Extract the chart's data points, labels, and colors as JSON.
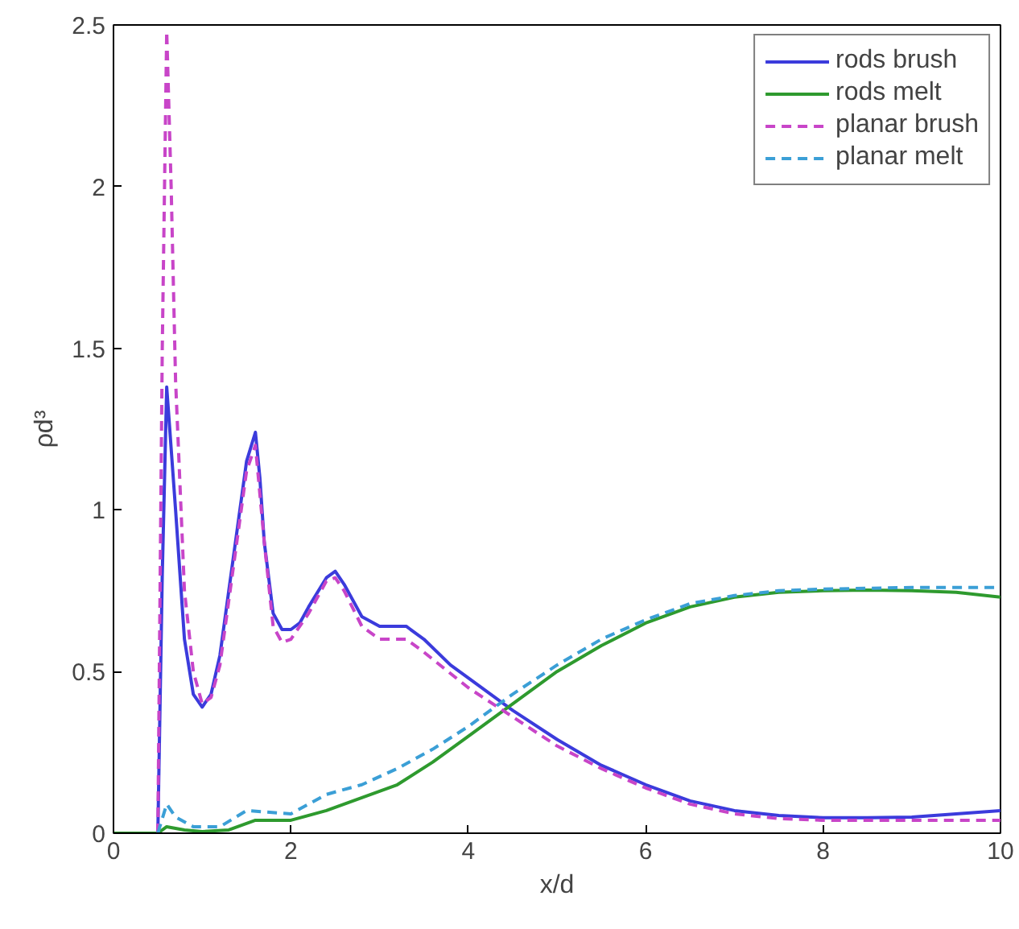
{
  "chart_data": {
    "type": "line",
    "xlabel": "x/d",
    "ylabel": "ρd³",
    "xlim": [
      0,
      10
    ],
    "ylim": [
      0,
      2.5
    ],
    "xticks": [
      0,
      2,
      4,
      6,
      8,
      10
    ],
    "yticks": [
      0,
      0.5,
      1,
      1.5,
      2,
      2.5
    ],
    "grid": false,
    "legend": "top right",
    "series": [
      {
        "name": "rods brush",
        "color": "#3b3bdc",
        "line_style": "solid",
        "x": [
          0,
          0.5,
          0.55,
          0.6,
          0.7,
          0.8,
          0.9,
          1.0,
          1.1,
          1.2,
          1.3,
          1.4,
          1.5,
          1.6,
          1.65,
          1.7,
          1.8,
          1.9,
          2.0,
          2.1,
          2.2,
          2.4,
          2.5,
          2.6,
          2.8,
          3.0,
          3.3,
          3.5,
          3.8,
          4.0,
          4.5,
          5,
          5.5,
          6,
          6.5,
          7,
          7.5,
          8,
          8.5,
          9,
          9.5,
          10
        ],
        "values": [
          0,
          0,
          0.8,
          1.38,
          1.0,
          0.6,
          0.43,
          0.39,
          0.43,
          0.55,
          0.75,
          0.95,
          1.15,
          1.24,
          1.1,
          0.9,
          0.68,
          0.63,
          0.63,
          0.65,
          0.7,
          0.79,
          0.81,
          0.77,
          0.67,
          0.64,
          0.64,
          0.6,
          0.52,
          0.48,
          0.38,
          0.29,
          0.21,
          0.15,
          0.1,
          0.07,
          0.055,
          0.048,
          0.048,
          0.05,
          0.06,
          0.07
        ]
      },
      {
        "name": "rods melt",
        "color": "#2e9a2e",
        "line_style": "solid",
        "x": [
          0,
          0.5,
          0.6,
          0.8,
          1.0,
          1.3,
          1.6,
          2.0,
          2.4,
          2.8,
          3.2,
          3.6,
          4.0,
          4.5,
          5,
          5.5,
          6,
          6.5,
          7,
          7.5,
          8,
          8.5,
          9,
          9.5,
          10
        ],
        "values": [
          0,
          0,
          0.02,
          0.01,
          0.005,
          0.01,
          0.04,
          0.04,
          0.07,
          0.11,
          0.15,
          0.22,
          0.3,
          0.4,
          0.5,
          0.58,
          0.65,
          0.7,
          0.73,
          0.745,
          0.75,
          0.752,
          0.75,
          0.745,
          0.73
        ]
      },
      {
        "name": "planar brush",
        "color": "#c845c8",
        "line_style": "dashed",
        "x": [
          0.5,
          0.55,
          0.6,
          0.65,
          0.7,
          0.8,
          0.9,
          1.0,
          1.1,
          1.2,
          1.3,
          1.4,
          1.5,
          1.6,
          1.7,
          1.8,
          1.9,
          2.0,
          2.2,
          2.4,
          2.5,
          2.6,
          2.8,
          3.0,
          3.3,
          3.5,
          4.0,
          4.5,
          5,
          5.5,
          6,
          6.5,
          7,
          7.5,
          8,
          9,
          10
        ],
        "values": [
          0,
          1.5,
          2.48,
          2.0,
          1.4,
          0.75,
          0.5,
          0.4,
          0.42,
          0.52,
          0.72,
          0.92,
          1.12,
          1.2,
          0.9,
          0.64,
          0.59,
          0.6,
          0.68,
          0.78,
          0.79,
          0.75,
          0.64,
          0.6,
          0.6,
          0.56,
          0.45,
          0.36,
          0.27,
          0.2,
          0.14,
          0.09,
          0.06,
          0.045,
          0.04,
          0.04,
          0.04
        ]
      },
      {
        "name": "planar melt",
        "color": "#3b9fd6",
        "line_style": "dashed",
        "x": [
          0.5,
          0.6,
          0.7,
          0.9,
          1.2,
          1.5,
          2.0,
          2.4,
          2.8,
          3.2,
          3.6,
          4.0,
          4.5,
          5,
          5.5,
          6,
          6.5,
          7,
          7.5,
          8,
          9,
          10
        ],
        "values": [
          0,
          0.09,
          0.05,
          0.02,
          0.02,
          0.07,
          0.06,
          0.12,
          0.15,
          0.2,
          0.26,
          0.33,
          0.43,
          0.52,
          0.6,
          0.66,
          0.71,
          0.735,
          0.75,
          0.755,
          0.76,
          0.76
        ]
      }
    ]
  }
}
